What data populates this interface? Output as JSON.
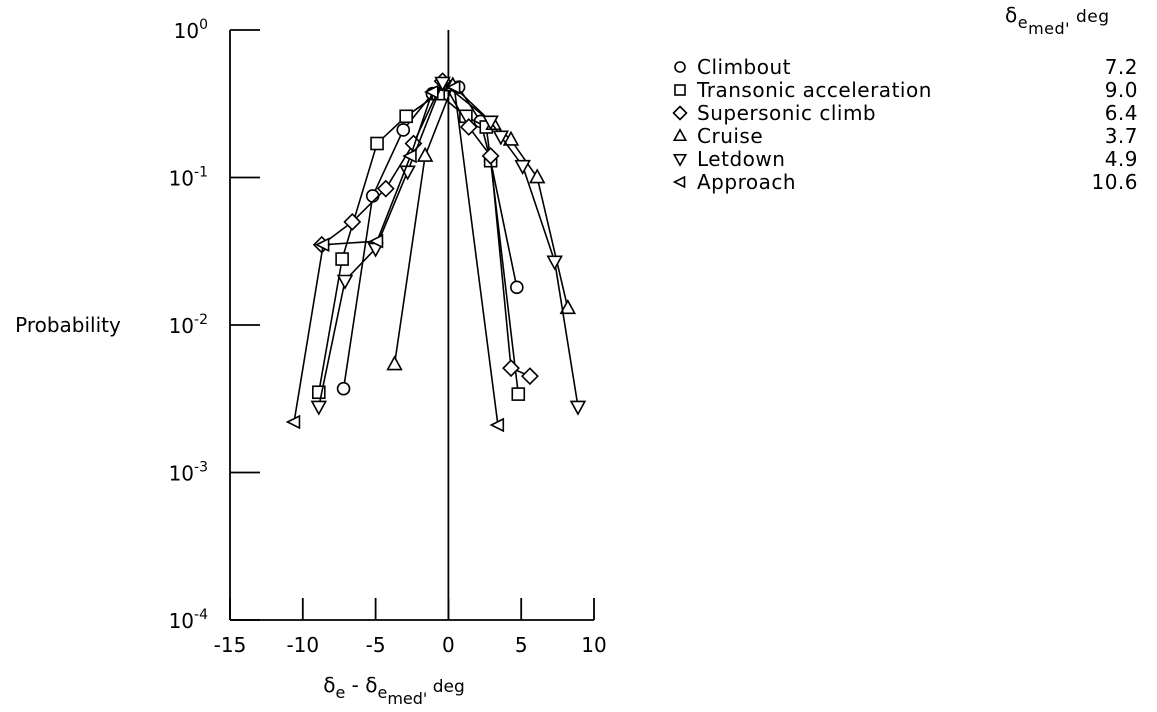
{
  "chart_data": {
    "type": "scatter",
    "y_scale": "log",
    "xlabel": {
      "base": "δ",
      "sub1": "e",
      "sep": " - ",
      "base2": "δ",
      "sub2": "e",
      "sub3": "med'",
      "unit": "deg"
    },
    "ylabel": "Probability",
    "xlim": [
      -15,
      10
    ],
    "ylim": [
      0.0001,
      1
    ],
    "x_ticks": [
      -15,
      -10,
      -5,
      0,
      5,
      10
    ],
    "x_tick_labels": [
      "-15",
      "-10",
      "-5",
      "0",
      "5",
      "10"
    ],
    "y_ticks": [
      {
        "value": 1,
        "base": "10",
        "exp": "0"
      },
      {
        "value": 0.1,
        "base": "10",
        "exp": "-1"
      },
      {
        "value": 0.01,
        "base": "10",
        "exp": "-2"
      },
      {
        "value": 0.001,
        "base": "10",
        "exp": "-3"
      },
      {
        "value": 0.0001,
        "base": "10",
        "exp": "-4"
      }
    ],
    "legend_header": {
      "base": "δ",
      "sub1": "e",
      "sub2": "med'",
      "unit": "deg"
    },
    "legend_position": "top-right",
    "grid": false,
    "series": [
      {
        "name": "Climbout",
        "median": "7.2",
        "marker": "circle",
        "points": [
          [
            -7.2,
            0.0037
          ],
          [
            -5.2,
            0.075
          ],
          [
            -3.1,
            0.21
          ],
          [
            -1.1,
            0.37
          ],
          [
            0.7,
            0.41
          ],
          [
            2.2,
            0.24
          ],
          [
            2.9,
            0.13
          ],
          [
            4.7,
            0.018
          ]
        ]
      },
      {
        "name": "Transonic acceleration",
        "median": "9.0",
        "marker": "square",
        "points": [
          [
            -8.9,
            0.0035
          ],
          [
            -7.3,
            0.028
          ],
          [
            -4.9,
            0.17
          ],
          [
            -2.9,
            0.26
          ],
          [
            -0.7,
            0.37
          ],
          [
            1.2,
            0.26
          ],
          [
            2.6,
            0.22
          ],
          [
            2.9,
            0.13
          ],
          [
            4.8,
            0.0034
          ]
        ]
      },
      {
        "name": "Supersonic climb",
        "median": "6.4",
        "marker": "diamond",
        "points": [
          [
            -8.7,
            0.035
          ],
          [
            -6.6,
            0.05
          ],
          [
            -4.3,
            0.084
          ],
          [
            -2.4,
            0.17
          ],
          [
            -0.4,
            0.45
          ],
          [
            1.4,
            0.22
          ],
          [
            2.9,
            0.14
          ],
          [
            4.3,
            0.0051
          ],
          [
            5.6,
            0.0045
          ]
        ]
      },
      {
        "name": "Cruise",
        "median": "3.7",
        "marker": "triangle-up",
        "points": [
          [
            -3.7,
            0.0054
          ],
          [
            -1.6,
            0.14
          ],
          [
            0.3,
            0.42
          ],
          [
            3.1,
            0.23
          ],
          [
            4.3,
            0.18
          ],
          [
            6.1,
            0.1
          ],
          [
            8.2,
            0.013
          ]
        ]
      },
      {
        "name": "Letdown",
        "median": "4.9",
        "marker": "triangle-down",
        "points": [
          [
            -8.9,
            0.0028
          ],
          [
            -7.1,
            0.02
          ],
          [
            -5.0,
            0.033
          ],
          [
            -2.8,
            0.11
          ],
          [
            -0.4,
            0.44
          ],
          [
            2.9,
            0.24
          ],
          [
            3.6,
            0.19
          ],
          [
            5.1,
            0.12
          ],
          [
            7.3,
            0.027
          ],
          [
            8.9,
            0.0028
          ]
        ]
      },
      {
        "name": "Approach",
        "median": "10.6",
        "marker": "triangle-left",
        "points": [
          [
            -10.6,
            0.0022
          ],
          [
            -8.6,
            0.035
          ],
          [
            -4.9,
            0.037
          ],
          [
            -2.6,
            0.14
          ],
          [
            -1.1,
            0.38
          ],
          [
            0.4,
            0.41
          ],
          [
            3.4,
            0.0021
          ]
        ]
      }
    ]
  }
}
